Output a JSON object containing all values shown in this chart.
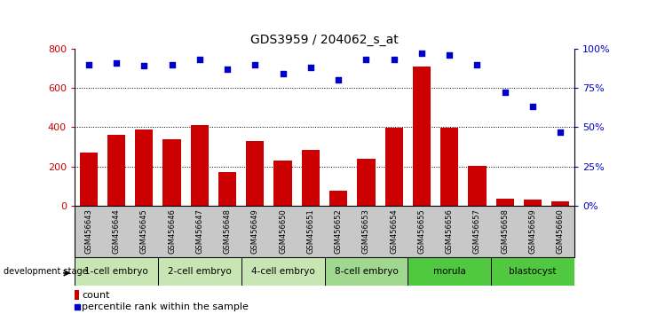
{
  "title": "GDS3959 / 204062_s_at",
  "samples": [
    "GSM456643",
    "GSM456644",
    "GSM456645",
    "GSM456646",
    "GSM456647",
    "GSM456648",
    "GSM456649",
    "GSM456650",
    "GSM456651",
    "GSM456652",
    "GSM456653",
    "GSM456654",
    "GSM456655",
    "GSM456656",
    "GSM456657",
    "GSM456658",
    "GSM456659",
    "GSM456660"
  ],
  "counts": [
    270,
    360,
    390,
    340,
    410,
    170,
    330,
    230,
    285,
    75,
    240,
    395,
    710,
    395,
    205,
    35,
    30,
    20
  ],
  "percentiles": [
    90,
    91,
    89,
    90,
    93,
    87,
    90,
    84,
    88,
    80,
    93,
    93,
    97,
    96,
    90,
    72,
    63,
    47
  ],
  "stages": [
    {
      "label": "1-cell embryo",
      "start": 0,
      "end": 3,
      "color": "#c8e6b4"
    },
    {
      "label": "2-cell embryo",
      "start": 3,
      "end": 6,
      "color": "#c8e6b4"
    },
    {
      "label": "4-cell embryo",
      "start": 6,
      "end": 9,
      "color": "#c8e6b4"
    },
    {
      "label": "8-cell embryo",
      "start": 9,
      "end": 12,
      "color": "#a0d890"
    },
    {
      "label": "morula",
      "start": 12,
      "end": 15,
      "color": "#50c840"
    },
    {
      "label": "blastocyst",
      "start": 15,
      "end": 18,
      "color": "#50c840"
    }
  ],
  "bar_color": "#cc0000",
  "dot_color": "#0000cc",
  "left_ylim": [
    0,
    800
  ],
  "right_ylim": [
    0,
    100
  ],
  "left_yticks": [
    0,
    200,
    400,
    600,
    800
  ],
  "right_yticks": [
    0,
    25,
    50,
    75,
    100
  ],
  "right_yticklabels": [
    "0%",
    "25%",
    "50%",
    "75%",
    "100%"
  ],
  "tick_label_color_left": "#cc0000",
  "tick_label_color_right": "#0000cc",
  "xtick_bg_color": "#c8c8c8",
  "grid_lines": [
    200,
    400,
    600
  ]
}
